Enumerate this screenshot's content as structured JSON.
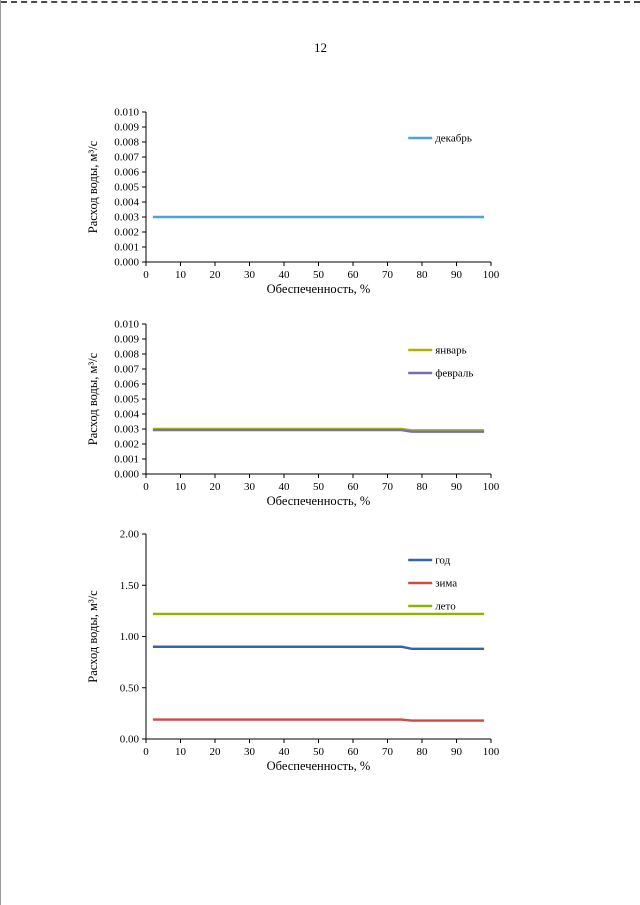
{
  "page": {
    "number": "12"
  },
  "chart_data": [
    {
      "type": "line",
      "title": "",
      "xlabel": "Обеспеченность, %",
      "ylabel": "Расход воды, м³/с",
      "xlim": [
        0,
        100
      ],
      "ylim": [
        0,
        0.01
      ],
      "xticks": [
        "0",
        "10",
        "20",
        "30",
        "40",
        "50",
        "60",
        "70",
        "80",
        "90",
        "100"
      ],
      "yticks": [
        "0.000",
        "0.001",
        "0.002",
        "0.003",
        "0.004",
        "0.005",
        "0.006",
        "0.007",
        "0.008",
        "0.009",
        "0.010"
      ],
      "grid": false,
      "legend_position": "inside-top-right",
      "series": [
        {
          "name": "декабрь",
          "color": "#55a0d3",
          "points": [
            [
              2,
              0.003
            ],
            [
              98,
              0.003
            ]
          ]
        }
      ]
    },
    {
      "type": "line",
      "title": "",
      "xlabel": "Обеспеченность, %",
      "ylabel": "Расход воды, м³/с",
      "xlim": [
        0,
        100
      ],
      "ylim": [
        0,
        0.01
      ],
      "xticks": [
        "0",
        "10",
        "20",
        "30",
        "40",
        "50",
        "60",
        "70",
        "80",
        "90",
        "100"
      ],
      "yticks": [
        "0.000",
        "0.001",
        "0.002",
        "0.003",
        "0.004",
        "0.005",
        "0.006",
        "0.007",
        "0.008",
        "0.009",
        "0.010"
      ],
      "grid": false,
      "legend_position": "inside-top-right",
      "series": [
        {
          "name": "январь",
          "color": "#a8b400",
          "points": [
            [
              2,
              0.003
            ],
            [
              74,
              0.003
            ],
            [
              77,
              0.00291
            ],
            [
              98,
              0.00291
            ]
          ]
        },
        {
          "name": "февраль",
          "color": "#7a6fae",
          "points": [
            [
              2,
              0.00293
            ],
            [
              74,
              0.00293
            ],
            [
              77,
              0.00282
            ],
            [
              98,
              0.00282
            ]
          ]
        }
      ]
    },
    {
      "type": "line",
      "title": "",
      "xlabel": "Обеспеченность, %",
      "ylabel": "Расход воды, м³/с",
      "xlim": [
        0,
        100
      ],
      "ylim": [
        0,
        2.0
      ],
      "xticks": [
        "0",
        "10",
        "20",
        "30",
        "40",
        "50",
        "60",
        "70",
        "80",
        "90",
        "100"
      ],
      "yticks": [
        "0.00",
        "0.50",
        "1.00",
        "1.50",
        "2.00"
      ],
      "grid": false,
      "legend_position": "inside-top-right",
      "series": [
        {
          "name": "год",
          "color": "#3465ac",
          "points": [
            [
              2,
              0.9
            ],
            [
              74,
              0.9
            ],
            [
              77,
              0.88
            ],
            [
              98,
              0.88
            ]
          ]
        },
        {
          "name": "зима",
          "color": "#cf4a41",
          "points": [
            [
              2,
              0.19
            ],
            [
              74,
              0.19
            ],
            [
              77,
              0.18
            ],
            [
              98,
              0.18
            ]
          ]
        },
        {
          "name": "лето",
          "color": "#8fb400",
          "points": [
            [
              2,
              1.22
            ],
            [
              98,
              1.22
            ]
          ]
        }
      ]
    }
  ]
}
